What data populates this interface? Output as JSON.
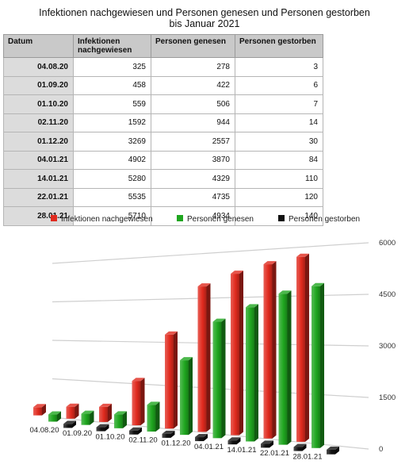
{
  "title_line1": "Infektionen nachgewiesen und Personen genesen und Personen gestorben",
  "title_line2": "bis Januar 2021",
  "table": {
    "headers": [
      "Datum",
      "Infektionen nachgewiesen",
      "Personen genesen",
      "Personen gestorben"
    ],
    "rows": [
      [
        "04.08.20",
        "325",
        "278",
        "3"
      ],
      [
        "01.09.20",
        "458",
        "422",
        "6"
      ],
      [
        "01.10.20",
        "559",
        "506",
        "7"
      ],
      [
        "02.11.20",
        "1592",
        "944",
        "14"
      ],
      [
        "01.12.20",
        "3269",
        "2557",
        "30"
      ],
      [
        "04.01.21",
        "4902",
        "3870",
        "84"
      ],
      [
        "14.01.21",
        "5280",
        "4329",
        "110"
      ],
      [
        "22.01.21",
        "5535",
        "4735",
        "120"
      ],
      [
        "28.01.21",
        "5710",
        "4934",
        "140"
      ]
    ]
  },
  "chart_data": {
    "type": "bar",
    "categories": [
      "04.08.20",
      "01.09.20",
      "01.10.20",
      "02.11.20",
      "01.12.20",
      "04.01.21",
      "14.01.21",
      "22.01.21",
      "28.01.21"
    ],
    "series": [
      {
        "name": "Infektionen nachgewiesen",
        "values": [
          325,
          458,
          559,
          1592,
          3269,
          4902,
          5280,
          5535,
          5710
        ],
        "color": "#e02a1e"
      },
      {
        "name": "Personen genesen",
        "values": [
          278,
          422,
          506,
          944,
          2557,
          3870,
          4329,
          4735,
          4934
        ],
        "color": "#1fa61f"
      },
      {
        "name": "Personen gestorben",
        "values": [
          3,
          6,
          7,
          14,
          30,
          84,
          110,
          120,
          140
        ],
        "color": "#111111"
      }
    ],
    "y_ticks": [
      "0",
      "1500",
      "3000",
      "4500",
      "6000"
    ],
    "ylim": [
      0,
      6000
    ],
    "grid": true,
    "legend_position": "top",
    "style": "3d-bar"
  }
}
